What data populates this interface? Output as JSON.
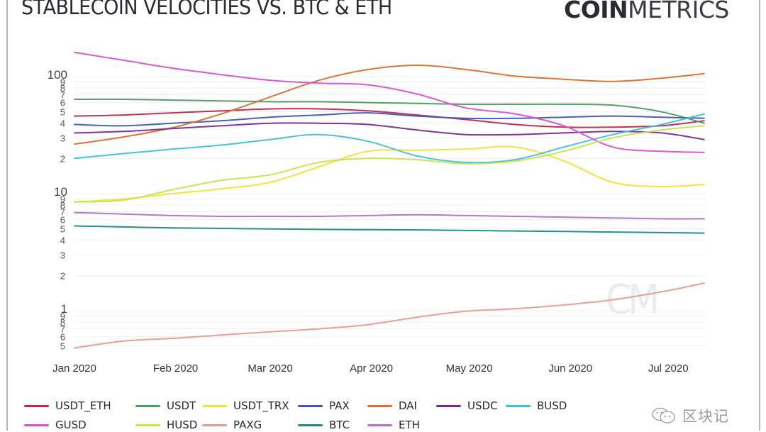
{
  "header": {
    "title": "STABLECOIN VELOCITIES VS. BTC & ETH",
    "brand_bold": "COIN",
    "brand_light": "METRICS"
  },
  "chart_watermark": "CM",
  "footer_watermark": {
    "icon": "wechat-bubble-icon",
    "text": "区块记"
  },
  "chart_data": {
    "type": "line",
    "title": "STABLECOIN VELOCITIES VS. BTC & ETH",
    "xlabel": "",
    "ylabel": "",
    "yscale": "log",
    "ylim": [
      0.47,
      180
    ],
    "grid": true,
    "legend_position": "bottom",
    "x_ticks": [
      "Jan 2020",
      "Feb 2020",
      "Mar 2020",
      "Apr 2020",
      "May 2020",
      "Jun 2020",
      "Jul 2020"
    ],
    "y_ticks": [
      {
        "value": 100,
        "label": "100",
        "major": true
      },
      {
        "value": 90,
        "label": "9"
      },
      {
        "value": 80,
        "label": "8"
      },
      {
        "value": 70,
        "label": "7"
      },
      {
        "value": 60,
        "label": "6"
      },
      {
        "value": 50,
        "label": "5"
      },
      {
        "value": 40,
        "label": "4"
      },
      {
        "value": 30,
        "label": "3"
      },
      {
        "value": 20,
        "label": "2"
      },
      {
        "value": 10,
        "label": "10",
        "major": true
      },
      {
        "value": 9,
        "label": "9"
      },
      {
        "value": 8,
        "label": "8"
      },
      {
        "value": 7,
        "label": "7"
      },
      {
        "value": 6,
        "label": "6"
      },
      {
        "value": 5,
        "label": "5"
      },
      {
        "value": 4,
        "label": "4"
      },
      {
        "value": 3,
        "label": "3"
      },
      {
        "value": 2,
        "label": "2"
      },
      {
        "value": 1,
        "label": "1",
        "major": true
      },
      {
        "value": 0.9,
        "label": "9"
      },
      {
        "value": 0.8,
        "label": "8"
      },
      {
        "value": 0.7,
        "label": "7"
      },
      {
        "value": 0.6,
        "label": "6"
      },
      {
        "value": 0.5,
        "label": "5"
      }
    ],
    "x_days": [
      0,
      15,
      30,
      45,
      60,
      75,
      90,
      105,
      120,
      135,
      150,
      165,
      180,
      193
    ],
    "series": [
      {
        "name": "USDT_ETH",
        "color": "#c0254a",
        "values": [
          46,
          47,
          49,
          51,
          53,
          53,
          51,
          47,
          43,
          39,
          37,
          37,
          38,
          42
        ]
      },
      {
        "name": "USDT",
        "color": "#4f9a5e",
        "values": [
          64,
          64,
          63,
          62,
          61,
          61,
          60,
          59,
          58,
          58,
          58,
          57,
          50,
          40
        ]
      },
      {
        "name": "USDT_TRX",
        "color": "#f2e233",
        "values": [
          8.5,
          9.0,
          10.0,
          11.0,
          12.5,
          17.0,
          23.0,
          23.5,
          24.0,
          25.0,
          19.0,
          12.5,
          11.5,
          12.0
        ]
      },
      {
        "name": "PAX",
        "color": "#3e58b5",
        "values": [
          39,
          38,
          40,
          42,
          45,
          47,
          49,
          46,
          44,
          44,
          45,
          46,
          45,
          44
        ]
      },
      {
        "name": "DAI",
        "color": "#dd6d2c",
        "values": [
          26.5,
          30.5,
          36.6,
          48,
          67,
          93,
          115,
          125,
          115,
          101,
          95,
          91,
          97,
          106
        ]
      },
      {
        "name": "USDC",
        "color": "#7b2a90",
        "values": [
          33,
          34,
          36,
          38,
          40,
          40,
          39,
          35,
          32,
          32,
          33,
          34,
          33,
          29
        ]
      },
      {
        "name": "BUSD",
        "color": "#3ec0d6",
        "values": [
          20,
          22,
          24,
          26,
          29,
          32,
          28,
          21,
          18.5,
          19.5,
          25,
          32,
          39,
          48
        ]
      },
      {
        "name": "GUSD",
        "color": "#d94fd3",
        "values": [
          161,
          138,
          118,
          104,
          93,
          88,
          85,
          71,
          54,
          48,
          38,
          25,
          23,
          22.5
        ]
      },
      {
        "name": "HUSD",
        "color": "#c6e34d",
        "values": [
          8.5,
          8.8,
          10.8,
          13.0,
          14.5,
          18.5,
          20.0,
          19.5,
          18.0,
          19.0,
          23.0,
          30.0,
          35.0,
          38.0
        ]
      },
      {
        "name": "PAXG",
        "color": "#ea9a8a",
        "values": [
          0.48,
          0.55,
          0.58,
          0.62,
          0.66,
          0.7,
          0.76,
          0.88,
          0.99,
          1.04,
          1.12,
          1.24,
          1.45,
          1.72
        ]
      },
      {
        "name": "BTC",
        "color": "#1f8a7a",
        "values": [
          5.3,
          5.2,
          5.1,
          5.05,
          5.0,
          4.95,
          4.92,
          4.9,
          4.85,
          4.8,
          4.75,
          4.7,
          4.65,
          4.6
        ]
      },
      {
        "name": "ETH",
        "color": "#b370c8",
        "values": [
          6.9,
          6.7,
          6.5,
          6.4,
          6.4,
          6.4,
          6.5,
          6.6,
          6.5,
          6.4,
          6.3,
          6.2,
          6.1,
          6.1
        ]
      }
    ]
  }
}
